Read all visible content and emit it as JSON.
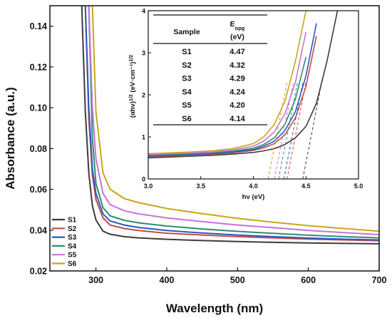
{
  "chart_data": [
    {
      "type": "line",
      "xlabel": "Wavelength (nm)",
      "ylabel": "Absorbance (a.u.)",
      "xlim": [
        235,
        700
      ],
      "ylim": [
        0.02,
        0.15
      ],
      "xticks": [
        "300",
        "400",
        "500",
        "600",
        "700"
      ],
      "yticks": [
        "0.02",
        "0.04",
        "0.06",
        "0.08",
        "0.10",
        "0.12",
        "0.14"
      ],
      "legend_position": "bottom-left",
      "x": [
        280,
        285,
        290,
        295,
        300,
        310,
        320,
        340,
        360,
        400,
        450,
        500,
        550,
        600,
        650,
        700
      ],
      "series": [
        {
          "name": "S1",
          "color": "#3c3c3c",
          "values": [
            0.15,
            0.098,
            0.068,
            0.052,
            0.045,
            0.0395,
            0.038,
            0.0368,
            0.0362,
            0.0355,
            0.0349,
            0.0344,
            0.034,
            0.0337,
            0.0335,
            0.0333
          ]
        },
        {
          "name": "S2",
          "color": "#c0503e",
          "values": [
            null,
            0.15,
            0.095,
            0.067,
            0.055,
            0.046,
            0.0425,
            0.0408,
            0.0398,
            0.0385,
            0.0376,
            0.0368,
            0.0362,
            0.0356,
            0.0352,
            0.0348
          ]
        },
        {
          "name": "S3",
          "color": "#2e55c9",
          "values": [
            null,
            0.15,
            0.1,
            0.07,
            0.058,
            0.048,
            0.0445,
            0.0425,
            0.0413,
            0.0398,
            0.0386,
            0.0376,
            0.0368,
            0.0361,
            0.0356,
            0.0352
          ]
        },
        {
          "name": "S4",
          "color": "#2a8f6a",
          "values": [
            null,
            null,
            0.15,
            0.085,
            0.063,
            0.051,
            0.047,
            0.0448,
            0.0436,
            0.042,
            0.0406,
            0.0394,
            0.0384,
            0.0375,
            0.0368,
            0.0362
          ]
        },
        {
          "name": "S5",
          "color": "#c872d8",
          "values": [
            null,
            null,
            0.15,
            0.1,
            0.075,
            0.058,
            0.0525,
            0.0495,
            0.048,
            0.046,
            0.0442,
            0.0425,
            0.0412,
            0.0399,
            0.0388,
            0.0378
          ]
        },
        {
          "name": "S6",
          "color": "#c9a617",
          "values": [
            null,
            null,
            null,
            0.15,
            0.098,
            0.068,
            0.06,
            0.0555,
            0.0535,
            0.0506,
            0.0481,
            0.0458,
            0.0439,
            0.0422,
            0.0408,
            0.0395
          ]
        }
      ]
    },
    {
      "type": "line",
      "xlabel": "hν (eV)",
      "ylabel": "(αhν)^1/2 (eV·cm⁻¹)^1/2",
      "xlim": [
        3.0,
        5.0
      ],
      "ylim": [
        0,
        4
      ],
      "xticks": [
        "3.0",
        "3.5",
        "4.0",
        "4.5",
        "5.0"
      ],
      "yticks": [
        "0",
        "1",
        "2",
        "3",
        "4"
      ],
      "x": [
        3.0,
        3.2,
        3.4,
        3.6,
        3.8,
        4.0,
        4.1,
        4.2,
        4.3,
        4.4,
        4.5,
        4.6,
        4.7,
        4.8
      ],
      "series": [
        {
          "name": "S1",
          "color": "#3c3c3c",
          "tangent_intercept_ev": 4.47,
          "values": [
            0.5,
            0.52,
            0.54,
            0.56,
            0.59,
            0.63,
            0.67,
            0.72,
            0.82,
            0.98,
            1.25,
            1.8,
            2.8,
            4.0
          ]
        },
        {
          "name": "S2",
          "color": "#c0503e",
          "tangent_intercept_ev": 4.32,
          "values": [
            0.52,
            0.54,
            0.56,
            0.58,
            0.62,
            0.68,
            0.74,
            0.84,
            1.05,
            1.45,
            2.2,
            3.4,
            null,
            null
          ]
        },
        {
          "name": "S3",
          "color": "#2e55c9",
          "tangent_intercept_ev": 4.29,
          "values": [
            0.54,
            0.56,
            0.58,
            0.6,
            0.64,
            0.7,
            0.78,
            0.9,
            1.15,
            1.6,
            2.45,
            3.7,
            null,
            null
          ]
        },
        {
          "name": "S4",
          "color": "#2a8f6a",
          "tangent_intercept_ev": 4.24,
          "values": [
            0.56,
            0.58,
            0.6,
            0.62,
            0.66,
            0.73,
            0.82,
            0.98,
            1.3,
            1.9,
            2.9,
            null,
            null,
            null
          ]
        },
        {
          "name": "S5",
          "color": "#c872d8",
          "tangent_intercept_ev": 4.2,
          "values": [
            0.58,
            0.6,
            0.62,
            0.64,
            0.69,
            0.78,
            0.9,
            1.12,
            1.55,
            2.3,
            3.5,
            null,
            null,
            null
          ]
        },
        {
          "name": "S6",
          "color": "#c9a617",
          "tangent_intercept_ev": 4.14,
          "values": [
            0.6,
            0.62,
            0.64,
            0.67,
            0.72,
            0.84,
            1.0,
            1.3,
            1.85,
            2.8,
            4.0,
            null,
            null,
            null
          ]
        }
      ]
    }
  ],
  "table": {
    "head_sample": "Sample",
    "head_eopg": "Eopg",
    "head_unit": "(eV)",
    "rows": [
      {
        "sample": "S1",
        "value": "4.47"
      },
      {
        "sample": "S2",
        "value": "4.32"
      },
      {
        "sample": "S3",
        "value": "4.29"
      },
      {
        "sample": "S4",
        "value": "4.24"
      },
      {
        "sample": "S5",
        "value": "4.20"
      },
      {
        "sample": "S6",
        "value": "4.14"
      }
    ]
  }
}
